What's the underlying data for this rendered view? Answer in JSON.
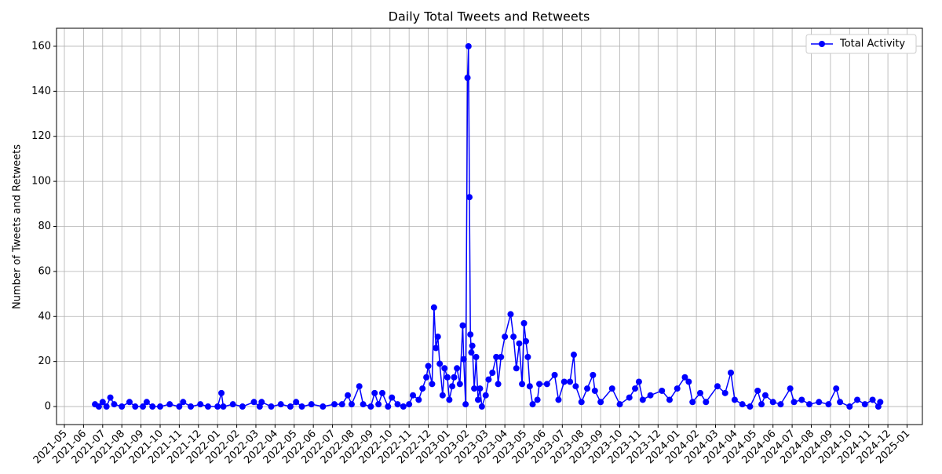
{
  "chart_data": {
    "type": "line",
    "title": "Daily Total Tweets and Retweets",
    "y_label": "Number of Tweets and Retweets",
    "grid": true,
    "legend": "upper right",
    "x": [
      1.6,
      1.8,
      2.0,
      2.2,
      2.4,
      2.6,
      3.0,
      3.4,
      3.7,
      4.1,
      4.3,
      4.6,
      5.0,
      5.5,
      6.0,
      6.2,
      6.6,
      7.1,
      7.5,
      8.0,
      8.2,
      8.3,
      8.8,
      9.3,
      9.9,
      10.2,
      10.3,
      10.8,
      11.3,
      11.8,
      12.1,
      12.4,
      12.9,
      13.5,
      14.1,
      14.5,
      14.8,
      15.0,
      15.4,
      15.6,
      16.0,
      16.2,
      16.4,
      16.6,
      16.9,
      17.1,
      17.4,
      17.7,
      18.0,
      18.2,
      18.5,
      18.7,
      18.9,
      19.0,
      19.2,
      19.3,
      19.4,
      19.5,
      19.6,
      19.75,
      19.85,
      20.0,
      20.1,
      20.25,
      20.35,
      20.5,
      20.65,
      20.8,
      20.85,
      20.95,
      21.05,
      21.1,
      21.15,
      21.2,
      21.25,
      21.3,
      21.4,
      21.5,
      21.6,
      21.7,
      21.8,
      22.0,
      22.15,
      22.35,
      22.55,
      22.65,
      22.8,
      23.0,
      23.3,
      23.45,
      23.6,
      23.75,
      23.9,
      24.0,
      24.1,
      24.2,
      24.3,
      24.45,
      24.7,
      24.8,
      25.2,
      25.6,
      25.8,
      26.1,
      26.4,
      26.6,
      26.7,
      27.0,
      27.3,
      27.6,
      27.7,
      28.0,
      28.6,
      29.0,
      29.5,
      29.8,
      30.0,
      30.2,
      30.6,
      31.2,
      31.6,
      32.0,
      32.4,
      32.6,
      32.8,
      33.2,
      33.5,
      34.1,
      34.5,
      34.8,
      35.0,
      35.4,
      35.8,
      36.2,
      36.4,
      36.6,
      37.0,
      37.4,
      37.9,
      38.1,
      38.5,
      38.9,
      39.4,
      39.9,
      40.3,
      40.5,
      41.0,
      41.4,
      41.8,
      42.2,
      42.5,
      42.6
    ],
    "series": [
      {
        "name": "Total Activity",
        "color": "#0000ff",
        "values": [
          1,
          0,
          2,
          0,
          4,
          1,
          0,
          2,
          0,
          0,
          2,
          0,
          0,
          1,
          0,
          2,
          0,
          1,
          0,
          0,
          6,
          0,
          1,
          0,
          2,
          0,
          2,
          0,
          1,
          0,
          2,
          0,
          1,
          0,
          1,
          1,
          5,
          1,
          9,
          1,
          0,
          6,
          1,
          6,
          0,
          4,
          1,
          0,
          1,
          5,
          3,
          8,
          13,
          18,
          10,
          44,
          26,
          31,
          19,
          5,
          17,
          13,
          3,
          9,
          13,
          17,
          10,
          36,
          21,
          1,
          146,
          160,
          93,
          32,
          24,
          27,
          8,
          22,
          3,
          8,
          0,
          5,
          12,
          15,
          22,
          10,
          22,
          31,
          41,
          31,
          17,
          28,
          10,
          37,
          29,
          22,
          9,
          1,
          3,
          10,
          10,
          14,
          3,
          11,
          11,
          23,
          9,
          2,
          8,
          14,
          7,
          2,
          8,
          1,
          4,
          8,
          11,
          3,
          5,
          7,
          3,
          8,
          13,
          11,
          2,
          6,
          2,
          9,
          6,
          15,
          3,
          1,
          0,
          7,
          1,
          5,
          2,
          1,
          8,
          2,
          3,
          1,
          2,
          1,
          8,
          2,
          0,
          3,
          1,
          3,
          0,
          2
        ]
      }
    ],
    "xlim": [
      -0.41,
      44.8
    ],
    "ylim": [
      -8,
      168
    ],
    "yticks": [
      0,
      20,
      40,
      60,
      80,
      100,
      120,
      140,
      160
    ],
    "xticks": [
      {
        "value": 0,
        "label": "2021-05"
      },
      {
        "value": 1,
        "label": "2021-06"
      },
      {
        "value": 2,
        "label": "2021-07"
      },
      {
        "value": 3,
        "label": "2021-08"
      },
      {
        "value": 4,
        "label": "2021-09"
      },
      {
        "value": 5,
        "label": "2021-10"
      },
      {
        "value": 6,
        "label": "2021-11"
      },
      {
        "value": 7,
        "label": "2021-12"
      },
      {
        "value": 8,
        "label": "2022-01"
      },
      {
        "value": 9,
        "label": "2022-02"
      },
      {
        "value": 10,
        "label": "2022-03"
      },
      {
        "value": 11,
        "label": "2022-04"
      },
      {
        "value": 12,
        "label": "2022-05"
      },
      {
        "value": 13,
        "label": "2022-06"
      },
      {
        "value": 14,
        "label": "2022-07"
      },
      {
        "value": 15,
        "label": "2022-08"
      },
      {
        "value": 16,
        "label": "2022-09"
      },
      {
        "value": 17,
        "label": "2022-10"
      },
      {
        "value": 18,
        "label": "2022-11"
      },
      {
        "value": 19,
        "label": "2022-12"
      },
      {
        "value": 20,
        "label": "2023-01"
      },
      {
        "value": 21,
        "label": "2023-02"
      },
      {
        "value": 22,
        "label": "2023-03"
      },
      {
        "value": 23,
        "label": "2023-04"
      },
      {
        "value": 24,
        "label": "2023-05"
      },
      {
        "value": 25,
        "label": "2023-06"
      },
      {
        "value": 26,
        "label": "2023-07"
      },
      {
        "value": 27,
        "label": "2023-08"
      },
      {
        "value": 28,
        "label": "2023-09"
      },
      {
        "value": 29,
        "label": "2023-10"
      },
      {
        "value": 30,
        "label": "2023-11"
      },
      {
        "value": 31,
        "label": "2023-12"
      },
      {
        "value": 32,
        "label": "2024-01"
      },
      {
        "value": 33,
        "label": "2024-02"
      },
      {
        "value": 34,
        "label": "2024-03"
      },
      {
        "value": 35,
        "label": "2024-04"
      },
      {
        "value": 36,
        "label": "2024-05"
      },
      {
        "value": 37,
        "label": "2024-06"
      },
      {
        "value": 38,
        "label": "2024-07"
      },
      {
        "value": 39,
        "label": "2024-08"
      },
      {
        "value": 40,
        "label": "2024-09"
      },
      {
        "value": 41,
        "label": "2024-10"
      },
      {
        "value": 42,
        "label": "2024-11"
      },
      {
        "value": 43,
        "label": "2024-12"
      },
      {
        "value": 44,
        "label": "2025-01"
      }
    ]
  }
}
